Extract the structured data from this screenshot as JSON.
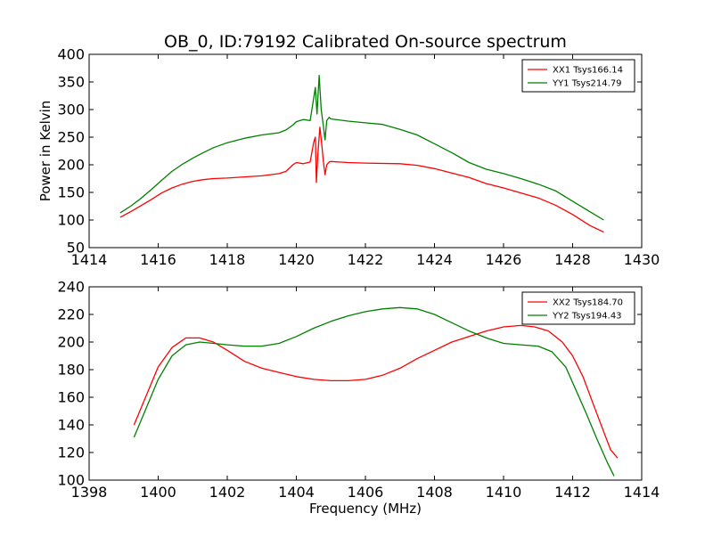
{
  "chart_data": [
    {
      "type": "line",
      "title": "OB_0, ID:79192 Calibrated On-source spectrum",
      "xlabel": "",
      "ylabel": "Power in Kelvin",
      "xlim": [
        1414,
        1430
      ],
      "ylim": [
        50,
        400
      ],
      "xticks": [
        1414,
        1416,
        1418,
        1420,
        1422,
        1424,
        1426,
        1428,
        1430
      ],
      "yticks": [
        50,
        100,
        150,
        200,
        250,
        300,
        350,
        400
      ],
      "legend": "top-right",
      "grid": false,
      "series": [
        {
          "name": "XX1 Tsys166.14",
          "color": "#ff0000",
          "points": [
            [
              1414.9,
              105
            ],
            [
              1415.2,
              115
            ],
            [
              1415.5,
              126
            ],
            [
              1415.8,
              137
            ],
            [
              1416.1,
              149
            ],
            [
              1416.4,
              158
            ],
            [
              1416.7,
              165
            ],
            [
              1417.0,
              170
            ],
            [
              1417.3,
              173
            ],
            [
              1417.6,
              175
            ],
            [
              1418.0,
              176
            ],
            [
              1418.5,
              178
            ],
            [
              1419.0,
              180
            ],
            [
              1419.5,
              184
            ],
            [
              1419.7,
              188
            ],
            [
              1419.9,
              200
            ],
            [
              1420.0,
              204
            ],
            [
              1420.2,
              202
            ],
            [
              1420.4,
              205
            ],
            [
              1420.5,
              240
            ],
            [
              1420.55,
              250
            ],
            [
              1420.58,
              168
            ],
            [
              1420.62,
              215
            ],
            [
              1420.68,
              268
            ],
            [
              1420.73,
              240
            ],
            [
              1420.78,
              208
            ],
            [
              1420.83,
              182
            ],
            [
              1420.88,
              200
            ],
            [
              1420.95,
              205
            ],
            [
              1421.0,
              206
            ],
            [
              1421.5,
              204
            ],
            [
              1422.0,
              203
            ],
            [
              1423.0,
              202
            ],
            [
              1423.5,
              199
            ],
            [
              1424.0,
              193
            ],
            [
              1424.5,
              185
            ],
            [
              1425.0,
              177
            ],
            [
              1425.5,
              166
            ],
            [
              1426.0,
              158
            ],
            [
              1426.5,
              149
            ],
            [
              1427.0,
              140
            ],
            [
              1427.5,
              127
            ],
            [
              1428.0,
              110
            ],
            [
              1428.5,
              90
            ],
            [
              1428.9,
              78
            ]
          ]
        },
        {
          "name": "YY1 Tsys214.79",
          "color": "#008000",
          "points": [
            [
              1414.9,
              113
            ],
            [
              1415.2,
              125
            ],
            [
              1415.5,
              139
            ],
            [
              1415.8,
              155
            ],
            [
              1416.1,
              172
            ],
            [
              1416.4,
              188
            ],
            [
              1416.7,
              201
            ],
            [
              1417.0,
              212
            ],
            [
              1417.3,
              222
            ],
            [
              1417.6,
              231
            ],
            [
              1418.0,
              240
            ],
            [
              1418.5,
              248
            ],
            [
              1419.0,
              254
            ],
            [
              1419.5,
              258
            ],
            [
              1419.7,
              263
            ],
            [
              1419.9,
              272
            ],
            [
              1420.0,
              278
            ],
            [
              1420.2,
              282
            ],
            [
              1420.4,
              280
            ],
            [
              1420.5,
              320
            ],
            [
              1420.55,
              340
            ],
            [
              1420.6,
              292
            ],
            [
              1420.66,
              362
            ],
            [
              1420.72,
              300
            ],
            [
              1420.78,
              272
            ],
            [
              1420.83,
              245
            ],
            [
              1420.88,
              280
            ],
            [
              1420.95,
              286
            ],
            [
              1421.0,
              283
            ],
            [
              1421.5,
              279
            ],
            [
              1422.0,
              276
            ],
            [
              1422.5,
              273
            ],
            [
              1423.0,
              264
            ],
            [
              1423.5,
              254
            ],
            [
              1424.0,
              238
            ],
            [
              1424.5,
              222
            ],
            [
              1425.0,
              204
            ],
            [
              1425.5,
              192
            ],
            [
              1426.0,
              184
            ],
            [
              1426.5,
              175
            ],
            [
              1427.0,
              165
            ],
            [
              1427.5,
              153
            ],
            [
              1428.0,
              134
            ],
            [
              1428.5,
              115
            ],
            [
              1428.9,
              100
            ]
          ]
        }
      ]
    },
    {
      "type": "line",
      "title": "",
      "xlabel": "Frequency (MHz)",
      "ylabel": "",
      "xlim": [
        1398,
        1414
      ],
      "ylim": [
        100,
        240
      ],
      "xticks": [
        1398,
        1400,
        1402,
        1404,
        1406,
        1408,
        1410,
        1412,
        1414
      ],
      "yticks": [
        100,
        120,
        140,
        160,
        180,
        200,
        220,
        240
      ],
      "legend": "top-right",
      "grid": false,
      "series": [
        {
          "name": "XX2 Tsys184.70",
          "color": "#ff0000",
          "points": [
            [
              1399.3,
              140
            ],
            [
              1399.6,
              158
            ],
            [
              1400.0,
              182
            ],
            [
              1400.4,
              196
            ],
            [
              1400.8,
              203
            ],
            [
              1401.2,
              203
            ],
            [
              1401.6,
              200
            ],
            [
              1402.0,
              194
            ],
            [
              1402.5,
              186
            ],
            [
              1403.0,
              181
            ],
            [
              1403.5,
              178
            ],
            [
              1404.0,
              175
            ],
            [
              1404.5,
              173
            ],
            [
              1405.0,
              172
            ],
            [
              1405.5,
              172
            ],
            [
              1406.0,
              173
            ],
            [
              1406.5,
              176
            ],
            [
              1407.0,
              181
            ],
            [
              1407.5,
              188
            ],
            [
              1408.0,
              194
            ],
            [
              1408.5,
              200
            ],
            [
              1409.0,
              204
            ],
            [
              1409.5,
              208
            ],
            [
              1410.0,
              211
            ],
            [
              1410.5,
              212
            ],
            [
              1410.9,
              211
            ],
            [
              1411.3,
              208
            ],
            [
              1411.7,
              200
            ],
            [
              1412.0,
              190
            ],
            [
              1412.3,
              175
            ],
            [
              1412.6,
              155
            ],
            [
              1412.9,
              135
            ],
            [
              1413.1,
              122
            ],
            [
              1413.3,
              116
            ]
          ]
        },
        {
          "name": "YY2 Tsys194.43",
          "color": "#008000",
          "points": [
            [
              1399.3,
              131
            ],
            [
              1399.6,
              149
            ],
            [
              1400.0,
              173
            ],
            [
              1400.4,
              190
            ],
            [
              1400.8,
              198
            ],
            [
              1401.2,
              200
            ],
            [
              1401.6,
              199
            ],
            [
              1402.0,
              198
            ],
            [
              1402.5,
              197
            ],
            [
              1403.0,
              197
            ],
            [
              1403.5,
              199
            ],
            [
              1404.0,
              204
            ],
            [
              1404.5,
              210
            ],
            [
              1405.0,
              215
            ],
            [
              1405.5,
              219
            ],
            [
              1406.0,
              222
            ],
            [
              1406.5,
              224
            ],
            [
              1407.0,
              225
            ],
            [
              1407.5,
              224
            ],
            [
              1408.0,
              220
            ],
            [
              1408.5,
              214
            ],
            [
              1409.0,
              208
            ],
            [
              1409.5,
              203
            ],
            [
              1410.0,
              199
            ],
            [
              1410.5,
              198
            ],
            [
              1411.0,
              197
            ],
            [
              1411.4,
              193
            ],
            [
              1411.8,
              182
            ],
            [
              1412.1,
              165
            ],
            [
              1412.4,
              148
            ],
            [
              1412.7,
              130
            ],
            [
              1413.0,
              113
            ],
            [
              1413.2,
              103
            ]
          ]
        }
      ]
    }
  ]
}
